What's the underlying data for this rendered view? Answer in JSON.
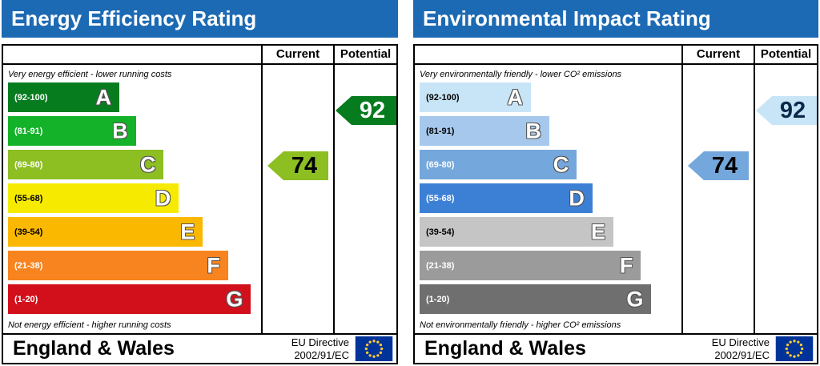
{
  "panels": [
    {
      "title": "Energy Efficiency Rating",
      "columns": {
        "current": "Current",
        "potential": "Potential"
      },
      "top_label": "Very energy efficient - lower running costs",
      "bottom_label": "Not energy efficient - higher running costs",
      "bands": [
        {
          "letter": "A",
          "range": "(92-100)",
          "low": 92,
          "high": 100,
          "color": "#077c1f",
          "range_text_color": "#ffffff",
          "width_pct": 44
        },
        {
          "letter": "B",
          "range": "(81-91)",
          "low": 81,
          "high": 91,
          "color": "#13b229",
          "range_text_color": "#ffffff",
          "width_pct": 50.5
        },
        {
          "letter": "C",
          "range": "(69-80)",
          "low": 69,
          "high": 80,
          "color": "#8dbe22",
          "range_text_color": "#ffffff",
          "width_pct": 61.5
        },
        {
          "letter": "D",
          "range": "(55-68)",
          "low": 55,
          "high": 68,
          "color": "#f6eb00",
          "range_text_color": "#000000",
          "width_pct": 67.5
        },
        {
          "letter": "E",
          "range": "(39-54)",
          "low": 39,
          "high": 54,
          "color": "#fbb800",
          "range_text_color": "#000000",
          "width_pct": 77
        },
        {
          "letter": "F",
          "range": "(21-38)",
          "low": 21,
          "high": 38,
          "color": "#f7841e",
          "range_text_color": "#ffffff",
          "width_pct": 87
        },
        {
          "letter": "G",
          "range": "(1-20)",
          "low": 1,
          "high": 20,
          "color": "#d2101c",
          "range_text_color": "#ffffff",
          "width_pct": 96
        }
      ],
      "current": {
        "value": 74,
        "band": "C",
        "color": "#8dbe22",
        "text_color": "#000000"
      },
      "potential": {
        "value": 92,
        "band": "A",
        "color": "#077c1f",
        "text_color": "#ffffff"
      },
      "footer": {
        "region": "England & Wales",
        "directive_line1": "EU Directive",
        "directive_line2": "2002/91/EC"
      }
    },
    {
      "title": "Environmental Impact Rating",
      "columns": {
        "current": "Current",
        "potential": "Potential"
      },
      "top_label": "Very environmentally friendly - lower CO² emissions",
      "bottom_label": "Not environmentally friendly - higher CO² emissions",
      "bands": [
        {
          "letter": "A",
          "range": "(92-100)",
          "low": 92,
          "high": 100,
          "color": "#c8e5f8",
          "range_text_color": "#000000",
          "width_pct": 42.5
        },
        {
          "letter": "B",
          "range": "(81-91)",
          "low": 81,
          "high": 91,
          "color": "#a6c8ec",
          "range_text_color": "#000000",
          "width_pct": 49.5
        },
        {
          "letter": "C",
          "range": "(69-80)",
          "low": 69,
          "high": 80,
          "color": "#74a7dc",
          "range_text_color": "#ffffff",
          "width_pct": 60
        },
        {
          "letter": "D",
          "range": "(55-68)",
          "low": 55,
          "high": 68,
          "color": "#3c80d6",
          "range_text_color": "#ffffff",
          "width_pct": 66
        },
        {
          "letter": "E",
          "range": "(39-54)",
          "low": 39,
          "high": 54,
          "color": "#c5c5c5",
          "range_text_color": "#000000",
          "width_pct": 74
        },
        {
          "letter": "F",
          "range": "(21-38)",
          "low": 21,
          "high": 38,
          "color": "#9b9b9b",
          "range_text_color": "#ffffff",
          "width_pct": 84.5
        },
        {
          "letter": "G",
          "range": "(1-20)",
          "low": 1,
          "high": 20,
          "color": "#6f6f6f",
          "range_text_color": "#ffffff",
          "width_pct": 88.5
        }
      ],
      "current": {
        "value": 74,
        "band": "C",
        "color": "#74a7dc",
        "text_color": "#000000"
      },
      "potential": {
        "value": 92,
        "band": "A",
        "color": "#c8e5f8",
        "text_color": "#0a2a4a"
      },
      "footer": {
        "region": "England & Wales",
        "directive_line1": "EU Directive",
        "directive_line2": "2002/91/EC"
      }
    }
  ],
  "colors": {
    "header_blue": "#1d6ab4",
    "eu_flag_blue": "#003399",
    "eu_flag_stars": "#ffcc33",
    "border": "#000000"
  },
  "icons": {
    "eu_flag": "eu-flag-icon"
  },
  "chart_data": [
    {
      "type": "bar",
      "title": "Energy Efficiency Rating",
      "categories": [
        "A",
        "B",
        "C",
        "D",
        "E",
        "F",
        "G"
      ],
      "band_ranges": [
        "92-100",
        "81-91",
        "69-80",
        "55-68",
        "39-54",
        "21-38",
        "1-20"
      ],
      "current": 74,
      "current_band": "C",
      "potential": 92,
      "potential_band": "A",
      "xlabel": "",
      "ylabel": "",
      "legend_position": "none",
      "annotations": [
        "Very energy efficient - lower running costs",
        "Not energy efficient - higher running costs"
      ]
    },
    {
      "type": "bar",
      "title": "Environmental Impact Rating",
      "categories": [
        "A",
        "B",
        "C",
        "D",
        "E",
        "F",
        "G"
      ],
      "band_ranges": [
        "92-100",
        "81-91",
        "69-80",
        "55-68",
        "39-54",
        "21-38",
        "1-20"
      ],
      "current": 74,
      "current_band": "C",
      "potential": 92,
      "potential_band": "A",
      "xlabel": "",
      "ylabel": "",
      "legend_position": "none",
      "annotations": [
        "Very environmentally friendly - lower CO² emissions",
        "Not environmentally friendly - higher CO² emissions"
      ]
    }
  ]
}
